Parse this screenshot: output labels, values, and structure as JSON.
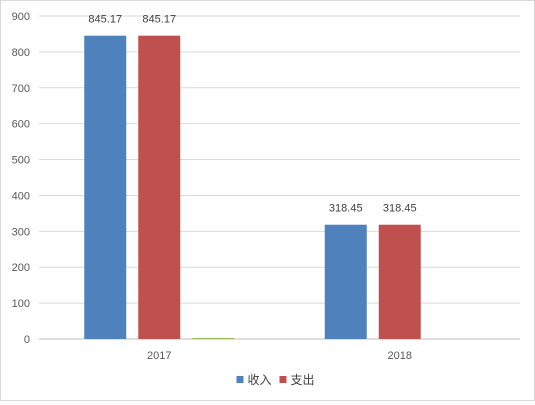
{
  "chart_data": {
    "type": "bar",
    "title": "",
    "xlabel": "",
    "ylabel": "",
    "categories": [
      "2017",
      "2018"
    ],
    "series": [
      {
        "name": "收入",
        "values": [
          845.17,
          318.45
        ],
        "color": "#4f81bd",
        "labels": [
          "845.17",
          "318.45"
        ]
      },
      {
        "name": "支出",
        "values": [
          845.17,
          318.45
        ],
        "color": "#c0504d",
        "labels": [
          "845.17",
          "318.45"
        ]
      },
      {
        "values": [
          3,
          0
        ],
        "color": "#9bbb59",
        "labels": [
          "",
          ""
        ]
      }
    ],
    "ylim": [
      0,
      900
    ],
    "yticks": [
      "0",
      "100",
      "200",
      "300",
      "400",
      "500",
      "600",
      "700",
      "800",
      "900"
    ],
    "grid": true,
    "legend": "bottom",
    "legend_entries": [
      "收入",
      "支出"
    ],
    "gridline_color": "#d9d9d9",
    "axis_color": "#bfbfbf"
  }
}
